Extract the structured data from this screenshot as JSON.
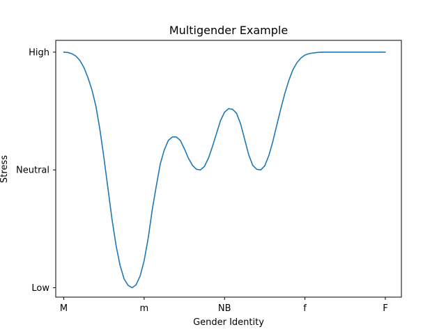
{
  "chart_data": {
    "type": "line",
    "title": "Multigender Example",
    "xlabel": "Gender Identity",
    "ylabel": "Stress",
    "x_categories": [
      "M",
      "m",
      "NB",
      "f",
      "F"
    ],
    "y_categories": [
      "Low",
      "Neutral",
      "High"
    ],
    "xlim": [
      -0.1,
      4.2
    ],
    "ylim": [
      -0.08,
      2.1
    ],
    "grid": false,
    "line_color": "#1f77b4",
    "series": [
      {
        "x": [
          0,
          0.05,
          0.1,
          0.15,
          0.2,
          0.25,
          0.3,
          0.35,
          0.4,
          0.45,
          0.5,
          0.55,
          0.6,
          0.65,
          0.7,
          0.75,
          0.8,
          0.85,
          0.9,
          0.95,
          1.0,
          1.05,
          1.1,
          1.15,
          1.2,
          1.25,
          1.3,
          1.35,
          1.4,
          1.45,
          1.5,
          1.55,
          1.6,
          1.65,
          1.7,
          1.75,
          1.8,
          1.85,
          1.9,
          1.95,
          2.0,
          2.05,
          2.1,
          2.15,
          2.2,
          2.25,
          2.3,
          2.35,
          2.4,
          2.45,
          2.5,
          2.55,
          2.6,
          2.65,
          2.7,
          2.75,
          2.8,
          2.85,
          2.9,
          2.95,
          3.0,
          3.05,
          3.1,
          3.15,
          3.2,
          3.25,
          3.3,
          3.35,
          3.4,
          3.45,
          3.5,
          3.55,
          3.6,
          3.65,
          3.7,
          3.75,
          3.8,
          3.85,
          3.9,
          3.95,
          4.0
        ],
        "y": [
          2.0,
          1.997,
          1.987,
          1.967,
          1.93,
          1.87,
          1.785,
          1.68,
          1.54,
          1.34,
          1.1,
          0.84,
          0.58,
          0.36,
          0.19,
          0.075,
          0.02,
          0.0,
          0.025,
          0.1,
          0.23,
          0.42,
          0.66,
          0.86,
          1.05,
          1.17,
          1.25,
          1.28,
          1.28,
          1.25,
          1.18,
          1.1,
          1.04,
          1.005,
          1.0,
          1.03,
          1.1,
          1.2,
          1.31,
          1.42,
          1.49,
          1.52,
          1.515,
          1.48,
          1.39,
          1.26,
          1.13,
          1.04,
          1.005,
          1.0,
          1.035,
          1.12,
          1.24,
          1.38,
          1.52,
          1.65,
          1.76,
          1.85,
          1.91,
          1.95,
          1.975,
          1.987,
          1.993,
          1.997,
          1.999,
          2.0,
          2.0,
          2.0,
          2.0,
          2.0,
          2.0,
          2.0,
          2.0,
          2.0,
          2.0,
          2.0,
          2.0,
          2.0,
          2.0,
          2.0,
          2.0
        ]
      }
    ]
  }
}
